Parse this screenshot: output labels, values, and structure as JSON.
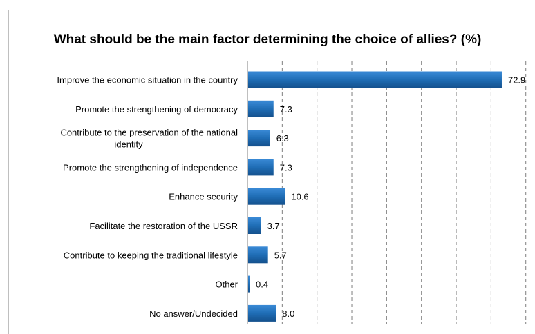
{
  "chart_data": {
    "type": "bar",
    "orientation": "horizontal",
    "title": "What should be the main factor determining the choice of allies? (%)",
    "categories": [
      "Improve the economic situation in the country",
      "Promote the strengthening of democracy",
      "Contribute to the preservation of the national identity",
      "Promote the strengthening of independence",
      "Enhance security",
      "Facilitate the restoration of the USSR",
      "Contribute to keeping the traditional lifestyle",
      "Other",
      "No answer/Undecided"
    ],
    "category_lines": [
      [
        "Improve the economic situation in the country"
      ],
      [
        "Promote the strengthening of democracy"
      ],
      [
        "Contribute to the preservation of the national",
        "identity"
      ],
      [
        "Promote the strengthening of independence"
      ],
      [
        "Enhance security"
      ],
      [
        "Facilitate the restoration of the USSR"
      ],
      [
        "Contribute to keeping the traditional lifestyle"
      ],
      [
        "Other"
      ],
      [
        "No answer/Undecided"
      ]
    ],
    "values": [
      72.9,
      7.3,
      6.3,
      7.3,
      10.6,
      3.7,
      5.7,
      0.4,
      8.0
    ],
    "value_labels": [
      "72.9",
      "7.3",
      "6.3",
      "7.3",
      "10.6",
      "3.7",
      "5.7",
      "0.4",
      "8.0"
    ],
    "xlim": [
      0,
      80
    ],
    "grid": "vertical-dashed",
    "legend": "none",
    "bar_color": "#1f6db5"
  }
}
